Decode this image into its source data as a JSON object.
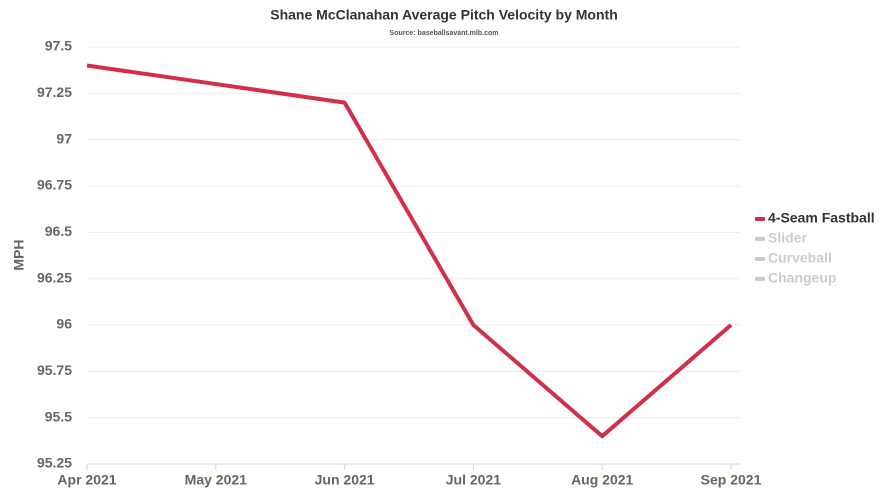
{
  "chart_data": {
    "type": "line",
    "title": "Shane McClanahan Average Pitch Velocity by Month",
    "subtitle": "Source: baseballsavant.mlb.com",
    "y_label": "MPH",
    "categories": [
      "Apr 2021",
      "May 2021",
      "Jun 2021",
      "Jul 2021",
      "Aug 2021",
      "Sep 2021"
    ],
    "series": [
      {
        "name": "4-Seam Fastball",
        "color": "#d22f4b",
        "values": [
          97.4,
          97.3,
          97.2,
          96.0,
          95.4,
          96.0
        ]
      },
      {
        "name": "Slider",
        "color": "#cccccc",
        "hidden": true,
        "values": [
          null,
          null,
          null,
          null,
          null,
          null
        ]
      },
      {
        "name": "Curveball",
        "color": "#cccccc",
        "hidden": true,
        "values": [
          null,
          null,
          null,
          null,
          null,
          null
        ]
      },
      {
        "name": "Changeup",
        "color": "#cccccc",
        "hidden": true,
        "values": [
          null,
          null,
          null,
          null,
          null,
          null
        ]
      }
    ],
    "ylim": [
      95.25,
      97.5
    ],
    "yticks": [
      95.25,
      95.5,
      95.75,
      96,
      96.25,
      96.5,
      96.75,
      97,
      97.25,
      97.5
    ],
    "grid": true,
    "legend": "right"
  }
}
